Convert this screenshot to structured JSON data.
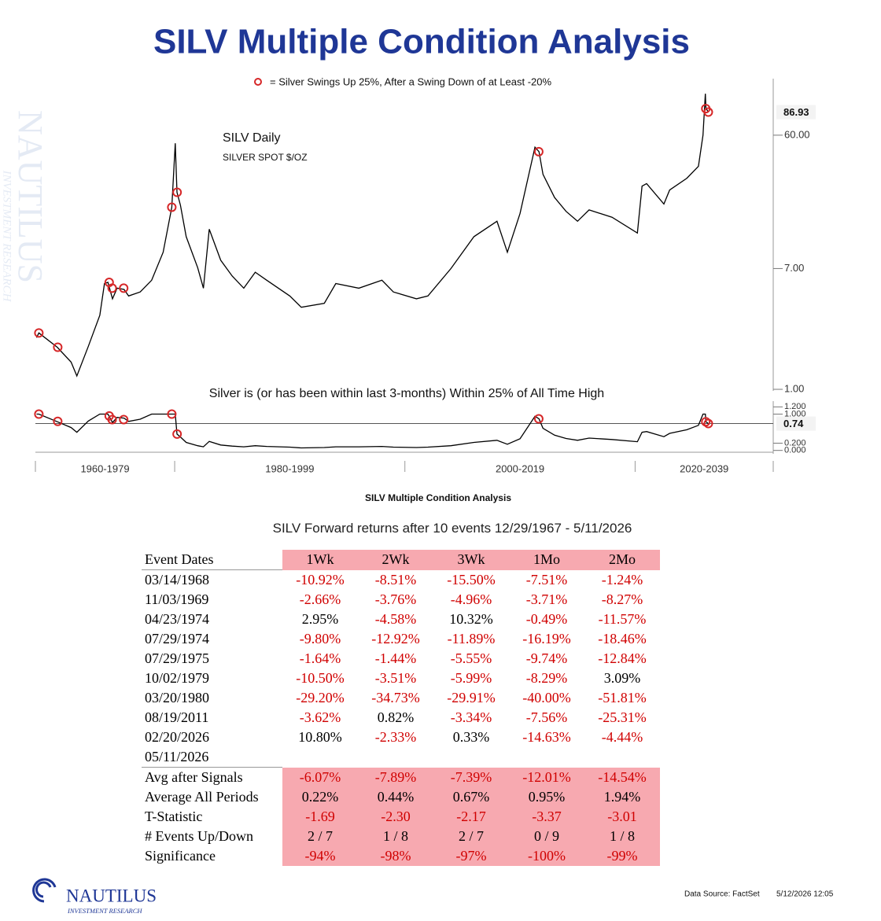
{
  "title": "SILV Multiple Condition Analysis",
  "watermark": [
    "NAUTILUS",
    "INVESTMENT RESEARCH"
  ],
  "chart_data": [
    {
      "type": "line",
      "log_scale": true,
      "annotations": [
        "SILV Daily",
        "SILVER SPOT $/OZ"
      ],
      "xlim": [
        1967.9,
        2032
      ],
      "ylim": [
        1,
        140
      ],
      "yticks": [
        {
          "value": 1,
          "label": "1.00"
        },
        {
          "value": 7,
          "label": "7.00"
        },
        {
          "value": 60,
          "label": "60.00"
        }
      ],
      "last_value": 86.93,
      "series": [
        {
          "color": "#000000",
          "x": [
            1968.0,
            1968.2,
            1969.8,
            1971.0,
            1971.5,
            1972.5,
            1973.5,
            1973.9,
            1974.2,
            1974.6,
            1975.0,
            1975.6,
            1976.0,
            1977.0,
            1978.0,
            1979.0,
            1979.75,
            1980.05,
            1980.2,
            1980.5,
            1981.0,
            1982.0,
            1982.5,
            1983.0,
            1984.0,
            1985.0,
            1986.0,
            1987.0,
            1988.0,
            1990.0,
            1991.0,
            1993.0,
            1994.0,
            1996.0,
            1998.0,
            1999.0,
            2001.0,
            2002.0,
            2004.0,
            2006.0,
            2008.0,
            2008.9,
            2010.0,
            2011.3,
            2011.65,
            2012.0,
            2013.0,
            2014.0,
            2015.0,
            2016.0,
            2018.0,
            2020.2,
            2020.6,
            2021.0,
            2022.5,
            2023.0,
            2024.5,
            2025.5,
            2025.9,
            2026.1,
            2026.15,
            2026.36
          ],
          "values": [
            2.3,
            2.48,
            1.97,
            1.55,
            1.24,
            2.0,
            3.3,
            5.5,
            5.6,
            4.3,
            5.1,
            5.0,
            4.5,
            4.8,
            5.8,
            9.1,
            18.8,
            52.7,
            23.9,
            19.4,
            11.7,
            7.1,
            5.1,
            13.2,
            8.0,
            6.2,
            5.1,
            6.6,
            5.8,
            4.5,
            3.75,
            4.0,
            5.5,
            5.1,
            5.8,
            4.8,
            4.3,
            4.5,
            7.0,
            11.7,
            15.0,
            9.1,
            17.0,
            49.5,
            46.0,
            31.9,
            22.0,
            17.6,
            15.0,
            18.0,
            16.0,
            12.4,
            26.4,
            27.5,
            19.8,
            24.8,
            30.0,
            36.3,
            60.0,
            117.0,
            93.0,
            86.93
          ]
        },
        {
          "name": "= Silver Swings Up 25%, After a Swing Down of at Least -20%",
          "color": "#d62728",
          "marker": "circle",
          "x": [
            1968.2,
            1969.84,
            1974.31,
            1974.57,
            1975.57,
            1979.75,
            1980.21,
            2011.63,
            2026.14,
            2026.36
          ],
          "values": [
            2.48,
            1.97,
            5.6,
            5.1,
            5.1,
            18.8,
            23.9,
            46.0,
            92.0,
            87.0
          ]
        }
      ]
    },
    {
      "type": "line",
      "log_scale": false,
      "title": "Silver is (or has been within last 3-months) Within 25% of All Time High",
      "xlim": [
        1967.9,
        2032
      ],
      "ylim": [
        -0.05,
        1.25
      ],
      "yticks": [
        {
          "value": 0,
          "label": "0.000"
        },
        {
          "value": 0.2,
          "label": "0.200"
        },
        {
          "value": 1,
          "label": "1.000"
        },
        {
          "value": 1.2,
          "label": "1.200"
        }
      ],
      "last_value": 0.74,
      "x_periods": [
        {
          "label": "1960-1979",
          "from": 1960,
          "to": 1980
        },
        {
          "label": "1980-1999",
          "from": 1980,
          "to": 2000
        },
        {
          "label": "2000-2019",
          "from": 2000,
          "to": 2020
        },
        {
          "label": "2020-2039",
          "from": 2020,
          "to": 2040
        }
      ],
      "series": [
        {
          "color": "#000000",
          "x": [
            1968.0,
            1968.2,
            1969.8,
            1971.0,
            1971.5,
            1972.5,
            1973.5,
            1973.9,
            1974.2,
            1974.6,
            1975.0,
            1975.6,
            1976.0,
            1977.0,
            1978.0,
            1979.0,
            1979.75,
            1980.05,
            1980.2,
            1980.5,
            1981.0,
            1982.0,
            1982.5,
            1983.0,
            1984.0,
            1985.0,
            1986.0,
            1987.0,
            1988.0,
            1990.0,
            1991.0,
            1993.0,
            1994.0,
            1996.0,
            1998.0,
            1999.0,
            2001.0,
            2002.0,
            2004.0,
            2006.0,
            2008.0,
            2008.9,
            2010.0,
            2011.3,
            2011.65,
            2012.0,
            2013.0,
            2014.0,
            2015.0,
            2016.0,
            2018.0,
            2020.2,
            2020.6,
            2021.0,
            2022.5,
            2023.0,
            2024.5,
            2025.5,
            2025.9,
            2026.1,
            2026.15,
            2026.36
          ],
          "values": [
            1.0,
            1.0,
            0.79,
            0.63,
            0.5,
            0.81,
            1.0,
            1.0,
            1.0,
            0.77,
            0.91,
            0.89,
            0.8,
            0.86,
            1.0,
            1.0,
            1.0,
            1.0,
            0.45,
            0.37,
            0.22,
            0.13,
            0.1,
            0.25,
            0.15,
            0.12,
            0.1,
            0.13,
            0.11,
            0.09,
            0.07,
            0.08,
            0.1,
            0.1,
            0.11,
            0.09,
            0.08,
            0.09,
            0.13,
            0.22,
            0.28,
            0.17,
            0.32,
            0.94,
            0.87,
            0.61,
            0.42,
            0.33,
            0.28,
            0.34,
            0.3,
            0.24,
            0.5,
            0.52,
            0.38,
            0.47,
            0.57,
            0.69,
            1.0,
            1.0,
            0.79,
            0.74
          ]
        },
        {
          "color": "#d62728",
          "marker": "circle",
          "x": [
            1968.2,
            1969.84,
            1974.31,
            1974.57,
            1975.57,
            1979.75,
            1980.21,
            2011.63,
            2026.14,
            2026.36
          ],
          "values": [
            1.0,
            0.8,
            0.95,
            0.85,
            0.85,
            1.0,
            0.45,
            0.87,
            0.79,
            0.74
          ]
        }
      ]
    }
  ],
  "caption": "SILV Multiple Condition Analysis",
  "table": {
    "title": "SILV Forward returns after 10 events 12/29/1967 - 5/11/2026",
    "columns": [
      "Event Dates",
      "1Wk",
      "2Wk",
      "3Wk",
      "1Mo",
      "2Mo"
    ],
    "rows": [
      [
        "03/14/1968",
        "-10.92%",
        "-8.51%",
        "-15.50%",
        "-7.51%",
        "-1.24%"
      ],
      [
        "11/03/1969",
        "-2.66%",
        "-3.76%",
        "-4.96%",
        "-3.71%",
        "-8.27%"
      ],
      [
        "04/23/1974",
        "2.95%",
        "-4.58%",
        "10.32%",
        "-0.49%",
        "-11.57%"
      ],
      [
        "07/29/1974",
        "-9.80%",
        "-12.92%",
        "-11.89%",
        "-16.19%",
        "-18.46%"
      ],
      [
        "07/29/1975",
        "-1.64%",
        "-1.44%",
        "-5.55%",
        "-9.74%",
        "-12.84%"
      ],
      [
        "10/02/1979",
        "-10.50%",
        "-3.51%",
        "-5.99%",
        "-8.29%",
        "3.09%"
      ],
      [
        "03/20/1980",
        "-29.20%",
        "-34.73%",
        "-29.91%",
        "-40.00%",
        "-51.81%"
      ],
      [
        "08/19/2011",
        "-3.62%",
        "0.82%",
        "-3.34%",
        "-7.56%",
        "-25.31%"
      ],
      [
        "02/20/2026",
        "10.80%",
        "-2.33%",
        "0.33%",
        "-14.63%",
        "-4.44%"
      ],
      [
        "05/11/2026"
      ]
    ],
    "summary": [
      [
        "Avg after Signals",
        "-6.07%",
        "-7.89%",
        "-7.39%",
        "-12.01%",
        "-14.54%"
      ],
      [
        "Average All Periods",
        "0.22%",
        "0.44%",
        "0.67%",
        "0.95%",
        "1.94%"
      ],
      [
        "T-Statistic",
        "-1.69",
        "-2.30",
        "-2.17",
        "-3.37",
        "-3.01"
      ],
      [
        "# Events Up/Down",
        "2 / 7",
        "1 / 8",
        "2 / 7",
        "0 / 9",
        "1 / 8"
      ],
      [
        "Significance",
        "-94%",
        "-98%",
        "-97%",
        "-100%",
        "-99%"
      ]
    ]
  },
  "footer": {
    "logo": [
      "NAUTILUS",
      "INVESTMENT RESEARCH"
    ],
    "source": "Data Source: FactSet",
    "timestamp": "5/12/2026 12:05"
  }
}
